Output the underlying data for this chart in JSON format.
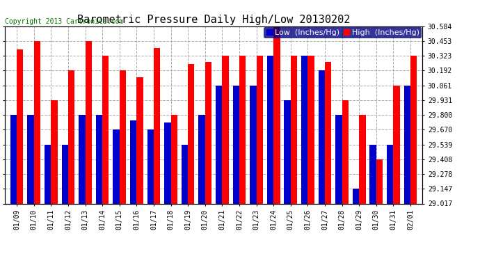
{
  "title": "Barometric Pressure Daily High/Low 20130202",
  "copyright": "Copyright 2013 Cartronics.com",
  "legend_low": "Low  (Inches/Hg)",
  "legend_high": "High  (Inches/Hg)",
  "dates": [
    "01/09",
    "01/10",
    "01/11",
    "01/12",
    "01/13",
    "01/14",
    "01/15",
    "01/16",
    "01/17",
    "01/18",
    "01/19",
    "01/20",
    "01/21",
    "01/22",
    "01/23",
    "01/24",
    "01/25",
    "01/26",
    "01/27",
    "01/28",
    "01/29",
    "01/30",
    "01/31",
    "02/01"
  ],
  "low_values": [
    29.8,
    29.8,
    29.539,
    29.539,
    29.8,
    29.8,
    29.67,
    29.75,
    29.67,
    29.73,
    29.539,
    29.8,
    30.061,
    30.061,
    30.061,
    30.323,
    29.931,
    30.323,
    30.192,
    29.8,
    29.147,
    29.539,
    29.539,
    30.061
  ],
  "high_values": [
    30.38,
    30.453,
    29.931,
    30.192,
    30.453,
    30.323,
    30.192,
    30.13,
    30.39,
    29.8,
    30.25,
    30.27,
    30.323,
    30.323,
    30.323,
    30.584,
    30.323,
    30.323,
    30.27,
    29.931,
    29.8,
    29.408,
    30.061,
    30.323
  ],
  "ylim_min": 29.017,
  "ylim_max": 30.584,
  "yticks": [
    29.017,
    29.147,
    29.278,
    29.408,
    29.539,
    29.67,
    29.8,
    29.931,
    30.061,
    30.192,
    30.323,
    30.453,
    30.584
  ],
  "bar_width": 0.38,
  "low_color": "#0000cc",
  "high_color": "#ff0000",
  "bg_color": "#ffffff",
  "grid_color": "#aaaaaa",
  "title_fontsize": 11,
  "tick_fontsize": 7,
  "legend_fontsize": 8,
  "copyright_color": "#007700"
}
